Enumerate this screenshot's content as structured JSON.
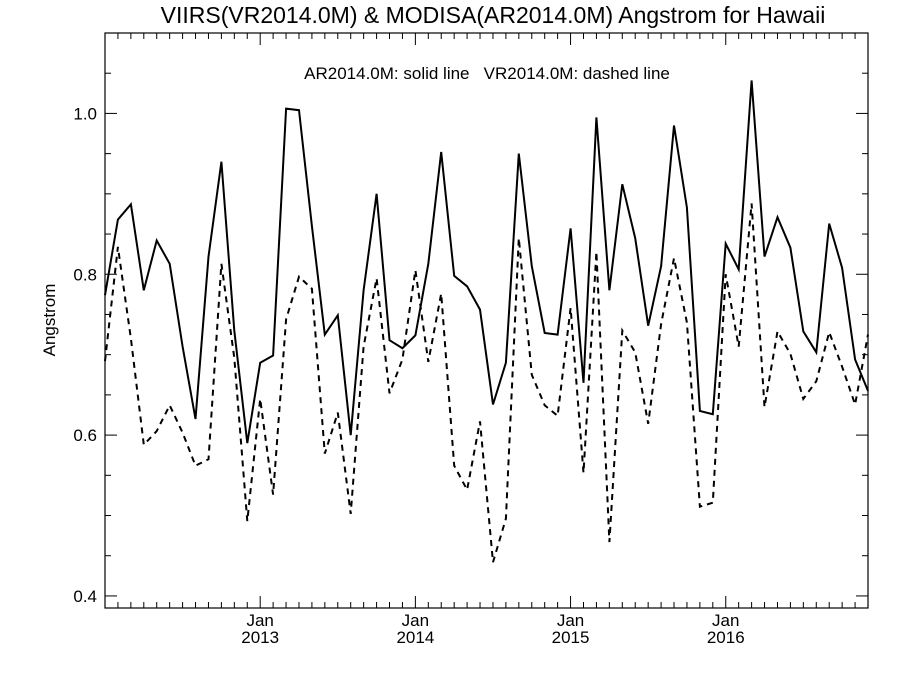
{
  "chart_data": {
    "type": "line",
    "title": "VIIRS(VR2014.0M) & MODISA(AR2014.0M)  Angstrom for Hawaii",
    "annotation": "AR2014.0M: solid line   VR2014.0M: dashed line",
    "ylabel": "Angstrom",
    "xlabel": "",
    "ylim": [
      0.385,
      1.1
    ],
    "yticks": [
      0.4,
      0.6,
      0.8,
      1.0
    ],
    "ytick_labels": [
      "0.4",
      "0.6",
      "0.8",
      "1.0"
    ],
    "xlim": [
      "2012-01",
      "2016-12"
    ],
    "xticks": [
      {
        "line1": "Jan",
        "line2": "2013",
        "x": "2013-01"
      },
      {
        "line1": "Jan",
        "line2": "2014",
        "x": "2014-01"
      },
      {
        "line1": "Jan",
        "line2": "2015",
        "x": "2015-01"
      },
      {
        "line1": "Jan",
        "line2": "2016",
        "x": "2016-01"
      }
    ],
    "minor_ticks": "monthly",
    "grid": false,
    "x": [
      "2012-01",
      "2012-02",
      "2012-03",
      "2012-04",
      "2012-05",
      "2012-06",
      "2012-07",
      "2012-08",
      "2012-09",
      "2012-10",
      "2012-11",
      "2012-12",
      "2013-01",
      "2013-02",
      "2013-03",
      "2013-04",
      "2013-05",
      "2013-06",
      "2013-07",
      "2013-08",
      "2013-09",
      "2013-10",
      "2013-11",
      "2013-12",
      "2014-01",
      "2014-02",
      "2014-03",
      "2014-04",
      "2014-05",
      "2014-06",
      "2014-07",
      "2014-08",
      "2014-09",
      "2014-10",
      "2014-11",
      "2014-12",
      "2015-01",
      "2015-02",
      "2015-03",
      "2015-04",
      "2015-05",
      "2015-06",
      "2015-07",
      "2015-08",
      "2015-09",
      "2015-10",
      "2015-11",
      "2015-12",
      "2016-01",
      "2016-02",
      "2016-03",
      "2016-04",
      "2016-05",
      "2016-06",
      "2016-07",
      "2016-08",
      "2016-09",
      "2016-10",
      "2016-11",
      "2016-12"
    ],
    "series": [
      {
        "name": "AR2014.0M",
        "style": "solid",
        "color": "#000000",
        "values": [
          0.774,
          0.868,
          0.887,
          0.78,
          0.842,
          0.813,
          0.71,
          0.62,
          0.822,
          0.94,
          0.73,
          0.59,
          0.69,
          0.699,
          1.006,
          1.004,
          0.86,
          0.725,
          0.749,
          0.6,
          0.78,
          0.9,
          0.718,
          0.708,
          0.724,
          0.813,
          0.952,
          0.798,
          0.785,
          0.756,
          0.638,
          0.69,
          0.95,
          0.81,
          0.727,
          0.725,
          0.857,
          0.665,
          0.995,
          0.78,
          0.912,
          0.845,
          0.736,
          0.81,
          0.985,
          0.883,
          0.63,
          0.626,
          0.838,
          0.806,
          1.041,
          0.822,
          0.871,
          0.833,
          0.729,
          0.703,
          0.863,
          0.808,
          0.694,
          0.655
        ]
      },
      {
        "name": "VR2014.0M",
        "style": "dashed",
        "color": "#000000",
        "values": [
          0.692,
          0.834,
          0.72,
          0.588,
          0.605,
          0.637,
          0.603,
          0.562,
          0.57,
          0.813,
          0.696,
          0.493,
          0.645,
          0.526,
          0.744,
          0.797,
          0.782,
          0.577,
          0.628,
          0.502,
          0.71,
          0.795,
          0.652,
          0.694,
          0.805,
          0.691,
          0.776,
          0.562,
          0.532,
          0.617,
          0.442,
          0.496,
          0.845,
          0.675,
          0.637,
          0.624,
          0.758,
          0.553,
          0.828,
          0.467,
          0.73,
          0.703,
          0.614,
          0.738,
          0.82,
          0.74,
          0.511,
          0.516,
          0.8,
          0.71,
          0.888,
          0.635,
          0.729,
          0.701,
          0.645,
          0.667,
          0.728,
          0.685,
          0.638,
          0.725
        ]
      }
    ]
  }
}
